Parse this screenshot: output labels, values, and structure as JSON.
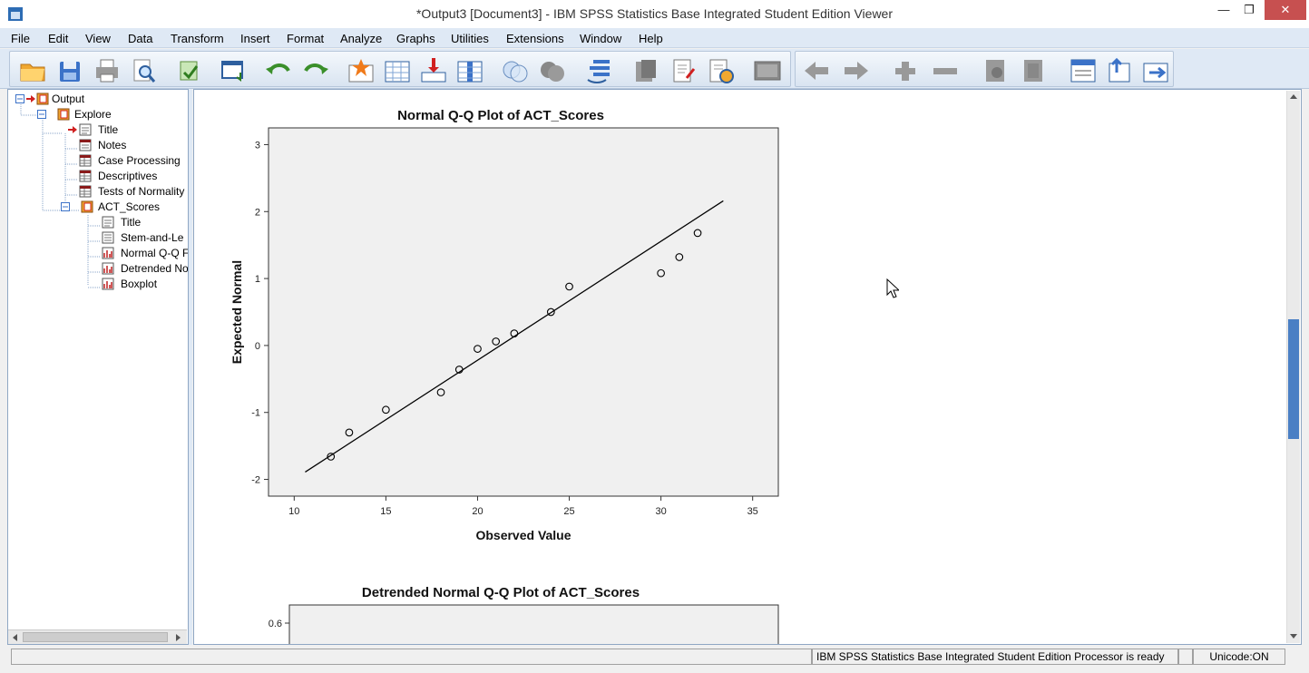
{
  "window": {
    "title": "*Output3 [Document3] - IBM SPSS Statistics Base Integrated Student Edition Viewer",
    "minimize_glyph": "—",
    "maximize_glyph": "❐",
    "close_glyph": "✕"
  },
  "menu": [
    {
      "label": "File"
    },
    {
      "label": "Edit"
    },
    {
      "label": "View"
    },
    {
      "label": "Data"
    },
    {
      "label": "Transform"
    },
    {
      "label": "Insert"
    },
    {
      "label": "Format"
    },
    {
      "label": "Analyze"
    },
    {
      "label": "Graphs"
    },
    {
      "label": "Utilities"
    },
    {
      "label": "Extensions"
    },
    {
      "label": "Window"
    },
    {
      "label": "Help"
    }
  ],
  "toolbar": {
    "icons": [
      "open-folder-icon",
      "save-icon",
      "print-icon",
      "print-preview-icon",
      "export-icon",
      "recall-dialog-icon",
      "undo-icon",
      "redo-icon",
      "goto-case-icon",
      "goto-variable-icon",
      "insert-output-icon",
      "variables-icon",
      "value-labels-icon",
      "use-sets-icon",
      "show-all-variables-icon",
      "designate-window-icon",
      "promote-icon",
      "demote-icon",
      "insert-heading-icon",
      "insert-title-icon",
      "insert-text-icon",
      "expand-icon",
      "collapse-icon",
      "show-icon",
      "hide-icon",
      "insert-new-heading-icon",
      "insert-new-title-icon",
      "insert-new-text-icon"
    ]
  },
  "outline": {
    "items": [
      {
        "label": "Output",
        "icon": "output-book-icon"
      },
      {
        "label": "Explore",
        "icon": "procedure-book-icon"
      },
      {
        "label": "Title",
        "icon": "title-icon"
      },
      {
        "label": "Notes",
        "icon": "notes-icon"
      },
      {
        "label": "Case Processing",
        "icon": "table-icon"
      },
      {
        "label": "Descriptives",
        "icon": "table-icon"
      },
      {
        "label": "Tests of Normality",
        "icon": "table-icon"
      },
      {
        "label": "ACT_Scores",
        "icon": "procedure-book-icon"
      },
      {
        "label": "Title",
        "icon": "title-icon"
      },
      {
        "label": "Stem-and-Le",
        "icon": "text-icon"
      },
      {
        "label": "Normal Q-Q F",
        "icon": "chart-icon"
      },
      {
        "label": "Detrended No",
        "icon": "chart-icon"
      },
      {
        "label": "Boxplot",
        "icon": "chart-icon"
      }
    ]
  },
  "chart_data": [
    {
      "type": "scatter",
      "title": "Normal Q-Q Plot of ACT_Scores",
      "xlabel": "Observed Value",
      "ylabel": "Expected Normal",
      "xlim": [
        8.6,
        36.4
      ],
      "ylim": [
        -2.25,
        3.25
      ],
      "xticks": [
        10,
        15,
        20,
        25,
        30,
        35
      ],
      "yticks": [
        -2,
        -1,
        0,
        1,
        2,
        3
      ],
      "points": [
        {
          "x": 12,
          "y": -1.66
        },
        {
          "x": 13,
          "y": -1.3
        },
        {
          "x": 15,
          "y": -0.96
        },
        {
          "x": 18,
          "y": -0.7
        },
        {
          "x": 19,
          "y": -0.36
        },
        {
          "x": 20,
          "y": -0.05
        },
        {
          "x": 21,
          "y": 0.06
        },
        {
          "x": 22,
          "y": 0.18
        },
        {
          "x": 24,
          "y": 0.5
        },
        {
          "x": 25,
          "y": 0.88
        },
        {
          "x": 30,
          "y": 1.08
        },
        {
          "x": 31,
          "y": 1.32
        },
        {
          "x": 32,
          "y": 1.68
        }
      ],
      "reference_line": [
        {
          "x": 10.6,
          "y": -1.89
        },
        {
          "x": 33.4,
          "y": 2.16
        }
      ],
      "background": "#f0f0f0",
      "grid": false
    },
    {
      "type": "scatter",
      "title": "Detrended Normal Q-Q Plot of ACT_Scores",
      "yticks": [
        0.6
      ],
      "background": "#f0f0f0"
    }
  ],
  "status": {
    "processor": "IBM SPSS Statistics Base Integrated Student Edition Processor is ready",
    "unicode": "Unicode:ON"
  }
}
